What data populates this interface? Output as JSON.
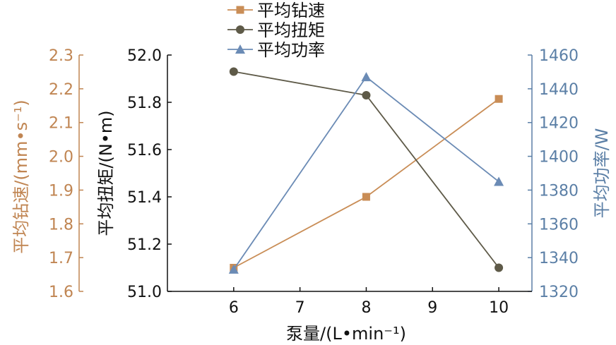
{
  "chart_data": {
    "type": "line",
    "x": [
      6,
      8,
      10
    ],
    "xlabel": "泵量/(L•min⁻¹)",
    "xlim": [
      5,
      10.5
    ],
    "xticks": [
      6,
      7,
      8,
      9,
      10
    ],
    "axes": {
      "speed": {
        "label": "平均钻速/(mm•s⁻¹)",
        "lim": [
          1.6,
          2.3
        ],
        "ticks": [
          "1.6",
          "1.7",
          "1.8",
          "1.9",
          "2.0",
          "2.1",
          "2.2",
          "2.3"
        ],
        "color": "#c08552"
      },
      "torque": {
        "label": "平均扭矩/(N•m)",
        "lim": [
          51.0,
          52.0
        ],
        "ticks": [
          "51.0",
          "51.2",
          "51.4",
          "51.6",
          "51.8",
          "52.0"
        ],
        "color": "#111111"
      },
      "power": {
        "label": "平均功率/W",
        "lim": [
          1320,
          1460
        ],
        "ticks": [
          "1320",
          "1340",
          "1360",
          "1380",
          "1400",
          "1420",
          "1440",
          "1460"
        ],
        "color": "#5b7fa6"
      }
    },
    "series": [
      {
        "name": "平均钻速",
        "axis": "speed",
        "marker": "square",
        "color": "#c98d56",
        "values": [
          1.67,
          1.88,
          2.17
        ]
      },
      {
        "name": "平均扭矩",
        "axis": "torque",
        "marker": "circle",
        "color": "#5e5a48",
        "values": [
          51.93,
          51.83,
          51.1
        ]
      },
      {
        "name": "平均功率",
        "axis": "power",
        "marker": "triangle",
        "color": "#6b8bb5",
        "values": [
          1333,
          1447,
          1385
        ]
      }
    ],
    "legend": "top-center",
    "grid": false
  }
}
